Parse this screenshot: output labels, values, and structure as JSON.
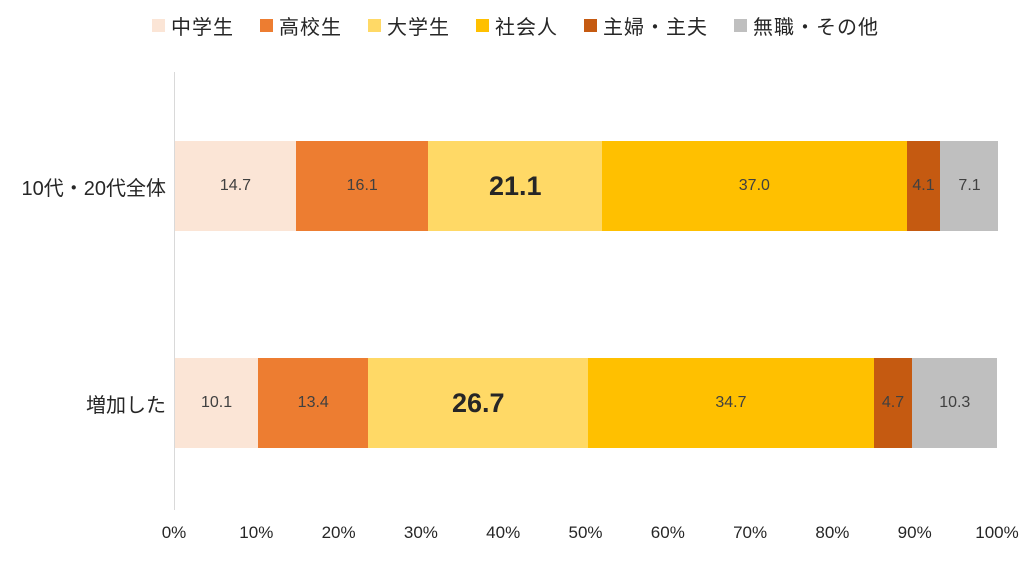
{
  "chart_data": {
    "type": "bar",
    "orientation": "horizontal_stacked",
    "title": "",
    "categories": [
      "10代・20代全体",
      "増加した"
    ],
    "series": [
      {
        "name": "中学生",
        "color": "#fbe5d6",
        "values": [
          14.7,
          10.1
        ]
      },
      {
        "name": "高校生",
        "color": "#ed7d31",
        "values": [
          16.1,
          13.4
        ]
      },
      {
        "name": "大学生",
        "color": "#ffd966",
        "values": [
          21.1,
          26.7
        ],
        "emphasized": true
      },
      {
        "name": "社会人",
        "color": "#ffc000",
        "values": [
          37.0,
          34.7
        ]
      },
      {
        "name": "主婦・主夫",
        "color": "#c55a11",
        "values": [
          4.1,
          4.7
        ]
      },
      {
        "name": "無職・その他",
        "color": "#bfbfbf",
        "values": [
          7.1,
          10.3
        ]
      }
    ],
    "x_axis": {
      "min": 0,
      "max": 100,
      "tick_labels": [
        "0%",
        "10%",
        "20%",
        "30%",
        "40%",
        "50%",
        "60%",
        "70%",
        "80%",
        "90%",
        "100%"
      ]
    },
    "legend_position": "top",
    "grid": false,
    "value_label_decimals": 1
  },
  "colors": {
    "background": "#ffffff",
    "axis_line": "#d9d9d9",
    "tick_label": "#262626",
    "category_label": "#262626",
    "data_label": "#404040",
    "data_label_emphasis": "#262626"
  }
}
